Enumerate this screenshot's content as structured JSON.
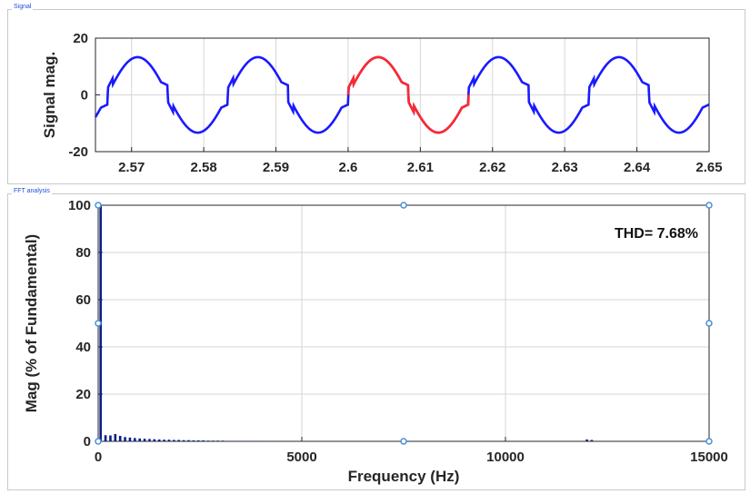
{
  "panels": {
    "signal_title": "Signal",
    "fft_title": "FFT analysis"
  },
  "colors": {
    "signal": "#1a1aff",
    "highlight": "#ff2a2a",
    "bars": "#0b1f8c",
    "markers": "#4a8fd6",
    "grid": "#d6d6d6"
  },
  "chart_data": [
    {
      "type": "line",
      "title": "",
      "xlabel": "",
      "ylabel": "Signal mag.",
      "xlim": [
        2.565,
        2.65
      ],
      "ylim": [
        -20,
        20
      ],
      "xticks": [
        2.57,
        2.58,
        2.59,
        2.6,
        2.61,
        2.62,
        2.63,
        2.64,
        2.65
      ],
      "xtick_labels": [
        "2.57",
        "2.58",
        "2.59",
        "2.6",
        "2.61",
        "2.62",
        "2.63",
        "2.64",
        "2.65"
      ],
      "yticks": [
        -20,
        0,
        20
      ],
      "ytick_labels": [
        "-20",
        "0",
        "20"
      ],
      "grid": true,
      "amplitude": 13.3,
      "frequency_hz": 60,
      "highlight_range": [
        2.6,
        2.6167
      ],
      "series": [
        {
          "role": "waveform",
          "color": "#1a1aff"
        },
        {
          "role": "analysis-window",
          "color": "#ff2a2a"
        }
      ]
    },
    {
      "type": "bar",
      "title": "",
      "xlabel": "Frequency (Hz)",
      "ylabel": "Mag (% of Fundamental)",
      "xlim": [
        0,
        15000
      ],
      "ylim": [
        0,
        100
      ],
      "xticks": [
        0,
        5000,
        10000,
        15000
      ],
      "xtick_labels": [
        "0",
        "5000",
        "10000",
        "15000"
      ],
      "yticks": [
        0,
        20,
        40,
        60,
        80,
        100
      ],
      "ytick_labels": [
        "0",
        "20",
        "40",
        "60",
        "80",
        "100"
      ],
      "grid": true,
      "annotation": "THD= 7.68%",
      "frequencies": [
        60,
        180,
        300,
        420,
        540,
        660,
        780,
        900,
        1020,
        1140,
        1260,
        1380,
        1500,
        1620,
        1740,
        1860,
        1980,
        2100,
        2220,
        2340,
        2460,
        2580,
        2700,
        2820,
        2940,
        3060,
        3180,
        3300,
        3420,
        3540,
        3660,
        3780,
        3900,
        4020,
        12000,
        12120
      ],
      "values": [
        100,
        2.6,
        2.5,
        3.1,
        2.3,
        1.8,
        1.6,
        1.4,
        1.2,
        1.1,
        1.0,
        0.9,
        0.8,
        0.7,
        0.7,
        0.6,
        0.6,
        0.5,
        0.5,
        0.4,
        0.4,
        0.4,
        0.3,
        0.3,
        0.3,
        0.3,
        0.2,
        0.2,
        0.2,
        0.2,
        0.2,
        0.2,
        0.1,
        0.1,
        0.8,
        0.6
      ]
    }
  ]
}
